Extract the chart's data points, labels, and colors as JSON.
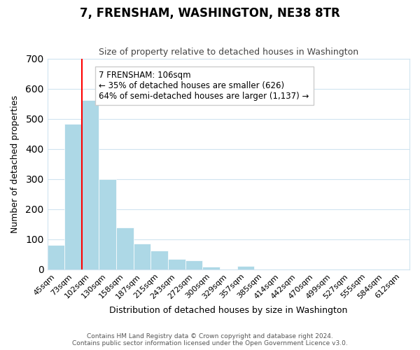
{
  "title": "7, FRENSHAM, WASHINGTON, NE38 8TR",
  "subtitle": "Size of property relative to detached houses in Washington",
  "xlabel": "Distribution of detached houses by size in Washington",
  "ylabel": "Number of detached properties",
  "footnote1": "Contains HM Land Registry data © Crown copyright and database right 2024.",
  "footnote2": "Contains public sector information licensed under the Open Government Licence v3.0.",
  "bar_labels": [
    "45sqm",
    "73sqm",
    "102sqm",
    "130sqm",
    "158sqm",
    "187sqm",
    "215sqm",
    "243sqm",
    "272sqm",
    "300sqm",
    "329sqm",
    "357sqm",
    "385sqm",
    "414sqm",
    "442sqm",
    "470sqm",
    "499sqm",
    "527sqm",
    "555sqm",
    "584sqm",
    "612sqm"
  ],
  "bar_values": [
    82,
    484,
    563,
    300,
    138,
    85,
    63,
    35,
    30,
    10,
    0,
    12,
    0,
    0,
    0,
    0,
    0,
    0,
    0,
    0,
    0
  ],
  "bar_color": "#add8e6",
  "bar_edge_color": "#add8e6",
  "vline_x": 2,
  "vline_color": "red",
  "annotation_text": "7 FRENSHAM: 106sqm\n← 35% of detached houses are smaller (626)\n64% of semi-detached houses are larger (1,137) →",
  "annotation_box_color": "white",
  "annotation_box_edge": "#cccccc",
  "ylim": [
    0,
    700
  ],
  "yticks": [
    0,
    100,
    200,
    300,
    400,
    500,
    600,
    700
  ],
  "grid_color": "#d0e4f0",
  "background_color": "white"
}
